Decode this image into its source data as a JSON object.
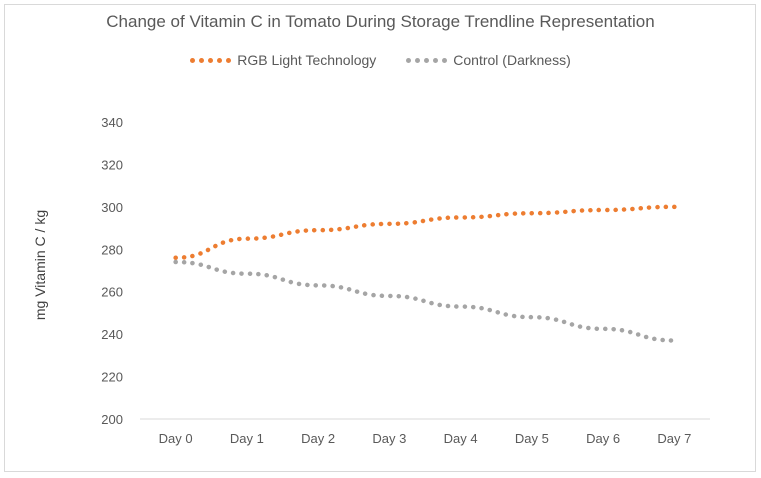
{
  "chart_data": {
    "type": "line",
    "title": "Change of Vitamin C in Tomato During Storage Trendline Representation",
    "xlabel": "",
    "ylabel": "mg Vitamin C / kg",
    "categories": [
      "Day 0",
      "Day 1",
      "Day 2",
      "Day 3",
      "Day 4",
      "Day 5",
      "Day 6",
      "Day 7"
    ],
    "ylim": [
      200,
      340
    ],
    "yticks": [
      200,
      220,
      240,
      260,
      280,
      300,
      320,
      340
    ],
    "series": [
      {
        "name": "RGB Light Technology",
        "color": "#ed7d31",
        "style": "dotted",
        "values": [
          276,
          285,
          289,
          292,
          295,
          297,
          298.5,
          300
        ]
      },
      {
        "name": "Control (Darkness)",
        "color": "#a5a5a5",
        "style": "dotted",
        "values": [
          274,
          268.5,
          263,
          258,
          253,
          248,
          242.5,
          237
        ]
      }
    ],
    "legend_position": "top"
  }
}
